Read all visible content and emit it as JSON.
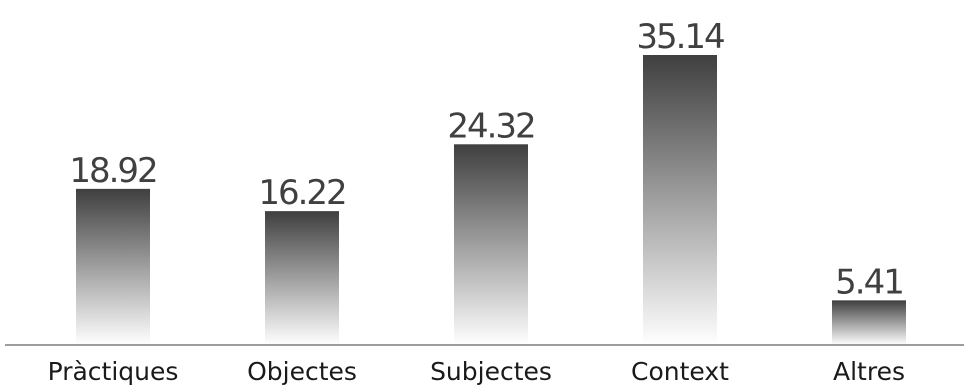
{
  "chart_data": {
    "type": "bar",
    "categories": [
      "Pràctiques",
      "Objectes",
      "Subjectes",
      "Context",
      "Altres"
    ],
    "values": [
      18.92,
      16.22,
      24.32,
      35.14,
      5.41
    ],
    "value_labels": [
      "18.92",
      "16.22",
      "24.32",
      "35.14",
      "5.41"
    ],
    "title": "",
    "xlabel": "",
    "ylabel": "",
    "ylim": [
      0,
      36
    ],
    "grid": false,
    "legend": "none",
    "colors": {
      "bar_top": "#3f3f3f",
      "bar_bottom": "#ffffff",
      "axis": "#7f7f7f",
      "value_text": "#404040",
      "category_text": "#1a1a1a"
    }
  }
}
